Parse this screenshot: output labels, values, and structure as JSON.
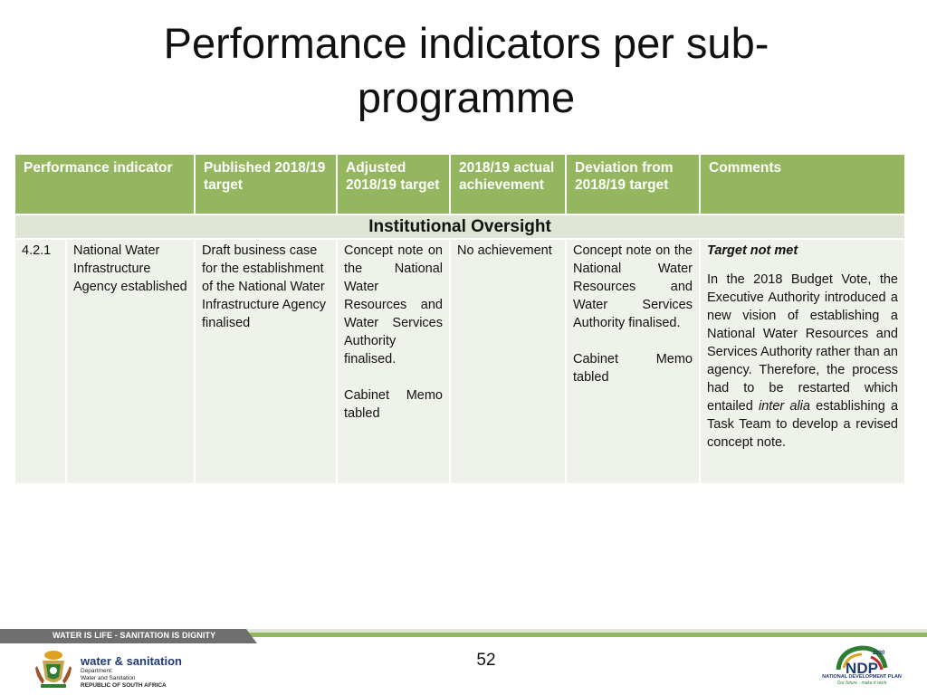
{
  "slide": {
    "title": "Performance indicators per sub-programme",
    "page_number": "52"
  },
  "table": {
    "headers": [
      "Performance indicator",
      "Published 2018/19 target",
      "Adjusted 2018/19 target",
      "2018/19 actual achievement",
      "Deviation from 2018/19 target",
      "Comments"
    ],
    "section_title": "Institutional Oversight",
    "row": {
      "number": "4.2.1",
      "indicator": "National Water Infrastructure Agency established",
      "published_target": "Draft business case for the establishment of the National Water Infrastructure Agency finalised",
      "adjusted_target_p1": "Concept note on the National Water Resources and Water Services Authority finalised.",
      "adjusted_target_p2": "Cabinet Memo tabled",
      "actual_achievement": "No achievement",
      "deviation_p1": "Concept note on the National Water Resources and Water Services Authority finalised.",
      "deviation_p2": "Cabinet Memo tabled",
      "comments_heading": "Target not met",
      "comments_part1": "In the 2018 Budget Vote, the Executive Authority introduced a new vision of establishing a National Water Resources and Services Authority rather than an agency. Therefore, the process had to be restarted which entailed ",
      "comments_italic": "inter alia",
      "comments_part2": " establishing a Task Team to develop a revised concept note."
    }
  },
  "footer": {
    "tagline": "WATER IS LIFE - SANITATION IS DIGNITY",
    "department_name": "water & sanitation",
    "department_line1": "Department:",
    "department_line2": "Water and Sanitation",
    "department_line3": "REPUBLIC OF SOUTH AFRICA",
    "ndp_year": "2030",
    "ndp_letters": "NDP",
    "ndp_caption": "NATIONAL DEVELOPMENT PLAN",
    "ndp_slogan": "Our future - make it work"
  },
  "colors": {
    "header_green": "#94b65e",
    "section_band": "#dfe6d6",
    "row_fill": "#eff2ea"
  }
}
